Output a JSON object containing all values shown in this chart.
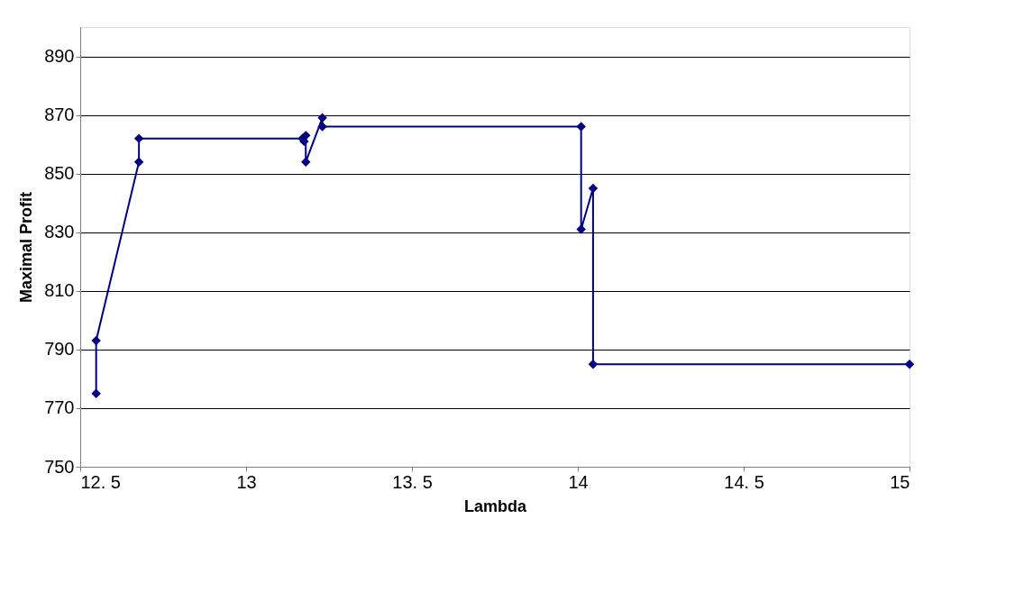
{
  "chart_data": {
    "type": "line",
    "xlabel": "Lambda",
    "ylabel": "Maximal Profit",
    "x": [
      12.548,
      12.548,
      12.677,
      12.677,
      13.17,
      13.175,
      13.18,
      13.18,
      13.23,
      13.23,
      14.01,
      14.01,
      14.046,
      14.046,
      15
    ],
    "series": [
      {
        "color": "#000080",
        "values": [
          775,
          793,
          854,
          862,
          862,
          861,
          863,
          854,
          869,
          866,
          866,
          831,
          845,
          785,
          785
        ]
      }
    ],
    "xlim": [
      12.5,
      15
    ],
    "ylim": [
      750,
      900
    ],
    "xticks": [
      {
        "value": 12.5,
        "label": "12. 5"
      },
      13,
      {
        "value": 13.5,
        "label": "13. 5"
      },
      14,
      {
        "value": 14.5,
        "label": "14. 5"
      },
      15
    ],
    "yticks": [
      750,
      770,
      790,
      810,
      830,
      850,
      870,
      890
    ],
    "grid": "y",
    "legend": false,
    "marker": "diamond",
    "line_style": "solid"
  }
}
